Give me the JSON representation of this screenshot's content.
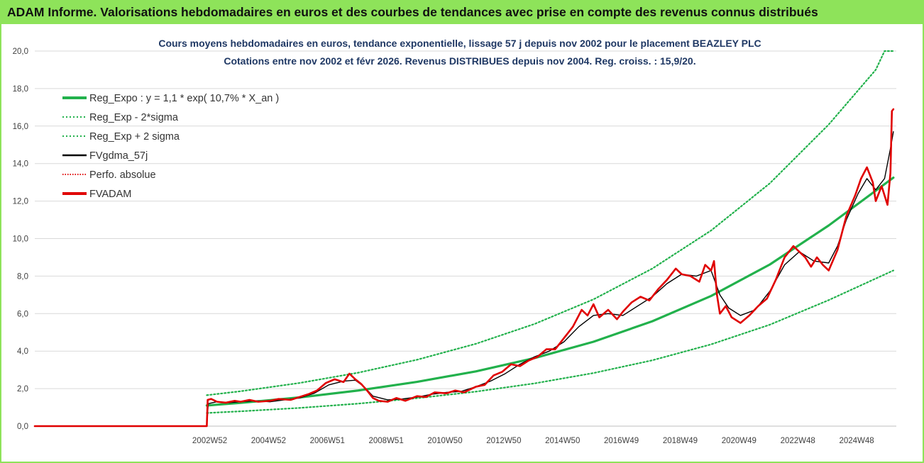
{
  "header": {
    "title": "ADAM Informe. Valorisations hebdomadaires en euros et des courbes de tendances avec prise en compte des revenus connus distribués"
  },
  "colors": {
    "header_bg": "#8ee35a",
    "reg_expo": "#22b14c",
    "sigma": "#22b14c",
    "fvgdma": "#000000",
    "perfo": "#e00000",
    "fvadam": "#e00000",
    "title_text": "#1f3864"
  },
  "chart_data": {
    "type": "line",
    "title_lines": [
      "Cours moyens hebdomadaires en euros, tendance exponentielle, lissage 57 j depuis nov 2002 pour le placement BEAZLEY PLC",
      "Cotations entre nov 2002 et févr 2026. Revenus DISTRIBUES depuis nov 2004. Reg. croiss. : 15,9/20."
    ],
    "ylim": [
      0,
      20
    ],
    "yticks": [
      "0,0",
      "2,0",
      "4,0",
      "6,0",
      "8,0",
      "10,0",
      "12,0",
      "14,0",
      "16,0",
      "18,0",
      "20,0"
    ],
    "xlim": [
      1997.0,
      2026.3
    ],
    "xticks": [
      {
        "label": "2002W52",
        "x": 2002.95
      },
      {
        "label": "2004W52",
        "x": 2004.95
      },
      {
        "label": "2006W51",
        "x": 2006.95
      },
      {
        "label": "2008W51",
        "x": 2008.95
      },
      {
        "label": "2010W50",
        "x": 2010.95
      },
      {
        "label": "2012W50",
        "x": 2012.95
      },
      {
        "label": "2014W50",
        "x": 2014.95
      },
      {
        "label": "2016W49",
        "x": 2016.95
      },
      {
        "label": "2018W49",
        "x": 2018.95
      },
      {
        "label": "2020W49",
        "x": 2020.95
      },
      {
        "label": "2022W48",
        "x": 2022.95
      },
      {
        "label": "2024W48",
        "x": 2024.95
      }
    ],
    "legend_position": "top-left",
    "series": [
      {
        "name": "Reg_Expo : y = 1,1 * exp( 10,7% *  X_an )",
        "style": "solid-thick",
        "color": "#22b14c",
        "points": [
          [
            2002.85,
            1.1
          ],
          [
            2004,
            1.24
          ],
          [
            2006,
            1.53
          ],
          [
            2008,
            1.9
          ],
          [
            2010,
            2.36
          ],
          [
            2012,
            2.92
          ],
          [
            2014,
            3.63
          ],
          [
            2016,
            4.5
          ],
          [
            2018,
            5.59
          ],
          [
            2020,
            6.94
          ],
          [
            2022,
            8.62
          ],
          [
            2024,
            10.7
          ],
          [
            2026.2,
            13.25
          ]
        ]
      },
      {
        "name": "Reg_Exp - 2*sigma",
        "style": "dotted",
        "color": "#22b14c",
        "points": [
          [
            2002.85,
            0.7
          ],
          [
            2004,
            0.79
          ],
          [
            2006,
            0.97
          ],
          [
            2008,
            1.2
          ],
          [
            2010,
            1.49
          ],
          [
            2012,
            1.84
          ],
          [
            2014,
            2.28
          ],
          [
            2016,
            2.83
          ],
          [
            2018,
            3.51
          ],
          [
            2020,
            4.36
          ],
          [
            2022,
            5.41
          ],
          [
            2024,
            6.72
          ],
          [
            2026.2,
            8.3
          ]
        ]
      },
      {
        "name": "Reg_Exp + 2 sigma",
        "style": "dotted",
        "color": "#22b14c",
        "points": [
          [
            2002.85,
            1.65
          ],
          [
            2004,
            1.86
          ],
          [
            2006,
            2.3
          ],
          [
            2008,
            2.85
          ],
          [
            2010,
            3.54
          ],
          [
            2012,
            4.39
          ],
          [
            2014,
            5.45
          ],
          [
            2016,
            6.76
          ],
          [
            2018,
            8.4
          ],
          [
            2020,
            10.43
          ],
          [
            2022,
            12.95
          ],
          [
            2024,
            16.08
          ],
          [
            2025.6,
            19.0
          ],
          [
            2025.9,
            20.0
          ],
          [
            2026.2,
            20.0
          ]
        ]
      },
      {
        "name": "FVgdma_57j",
        "style": "solid",
        "color": "#000000",
        "points": [
          [
            1997.0,
            0.0
          ],
          [
            2002.85,
            0.0
          ],
          [
            2002.9,
            1.2
          ],
          [
            2003.2,
            1.3
          ],
          [
            2003.6,
            1.25
          ],
          [
            2004.0,
            1.3
          ],
          [
            2004.5,
            1.35
          ],
          [
            2005.0,
            1.3
          ],
          [
            2005.5,
            1.4
          ],
          [
            2006.0,
            1.5
          ],
          [
            2006.5,
            1.75
          ],
          [
            2007.0,
            2.2
          ],
          [
            2007.5,
            2.4
          ],
          [
            2007.9,
            2.45
          ],
          [
            2008.2,
            2.1
          ],
          [
            2008.5,
            1.6
          ],
          [
            2009.0,
            1.4
          ],
          [
            2009.5,
            1.45
          ],
          [
            2010.0,
            1.55
          ],
          [
            2010.5,
            1.7
          ],
          [
            2011.0,
            1.8
          ],
          [
            2011.5,
            1.85
          ],
          [
            2012.0,
            2.1
          ],
          [
            2012.5,
            2.4
          ],
          [
            2013.0,
            2.8
          ],
          [
            2013.5,
            3.3
          ],
          [
            2014.0,
            3.7
          ],
          [
            2014.5,
            4.0
          ],
          [
            2015.0,
            4.5
          ],
          [
            2015.5,
            5.3
          ],
          [
            2016.0,
            5.9
          ],
          [
            2016.5,
            6.0
          ],
          [
            2017.0,
            5.9
          ],
          [
            2017.5,
            6.4
          ],
          [
            2018.0,
            6.9
          ],
          [
            2018.5,
            7.6
          ],
          [
            2019.0,
            8.1
          ],
          [
            2019.5,
            8.0
          ],
          [
            2020.0,
            8.3
          ],
          [
            2020.3,
            7.0
          ],
          [
            2020.6,
            6.3
          ],
          [
            2021.0,
            5.9
          ],
          [
            2021.5,
            6.2
          ],
          [
            2022.0,
            7.2
          ],
          [
            2022.5,
            8.6
          ],
          [
            2023.0,
            9.3
          ],
          [
            2023.5,
            8.8
          ],
          [
            2024.0,
            8.7
          ],
          [
            2024.3,
            9.6
          ],
          [
            2024.6,
            11.0
          ],
          [
            2025.0,
            12.4
          ],
          [
            2025.3,
            13.2
          ],
          [
            2025.6,
            12.6
          ],
          [
            2025.9,
            13.2
          ],
          [
            2026.1,
            14.8
          ],
          [
            2026.2,
            15.7
          ]
        ]
      },
      {
        "name": "Perfo. absolue",
        "style": "dotted",
        "color": "#e00000",
        "points": []
      },
      {
        "name": "FVADAM",
        "style": "solid-thick",
        "color": "#e00000",
        "points": [
          [
            1997.0,
            0.0
          ],
          [
            2002.85,
            0.0
          ],
          [
            2002.88,
            1.4
          ],
          [
            2003.0,
            1.45
          ],
          [
            2003.2,
            1.3
          ],
          [
            2003.5,
            1.25
          ],
          [
            2003.8,
            1.35
          ],
          [
            2004.0,
            1.3
          ],
          [
            2004.3,
            1.4
          ],
          [
            2004.6,
            1.3
          ],
          [
            2005.0,
            1.35
          ],
          [
            2005.3,
            1.45
          ],
          [
            2005.7,
            1.4
          ],
          [
            2006.0,
            1.55
          ],
          [
            2006.3,
            1.7
          ],
          [
            2006.6,
            1.9
          ],
          [
            2006.9,
            2.3
          ],
          [
            2007.2,
            2.5
          ],
          [
            2007.5,
            2.35
          ],
          [
            2007.7,
            2.8
          ],
          [
            2007.9,
            2.5
          ],
          [
            2008.1,
            2.25
          ],
          [
            2008.3,
            1.9
          ],
          [
            2008.5,
            1.5
          ],
          [
            2008.7,
            1.35
          ],
          [
            2009.0,
            1.3
          ],
          [
            2009.3,
            1.5
          ],
          [
            2009.6,
            1.35
          ],
          [
            2010.0,
            1.6
          ],
          [
            2010.3,
            1.55
          ],
          [
            2010.6,
            1.8
          ],
          [
            2011.0,
            1.75
          ],
          [
            2011.3,
            1.9
          ],
          [
            2011.6,
            1.8
          ],
          [
            2012.0,
            2.1
          ],
          [
            2012.3,
            2.2
          ],
          [
            2012.6,
            2.7
          ],
          [
            2012.9,
            2.9
          ],
          [
            2013.2,
            3.3
          ],
          [
            2013.5,
            3.2
          ],
          [
            2013.8,
            3.5
          ],
          [
            2014.1,
            3.7
          ],
          [
            2014.4,
            4.1
          ],
          [
            2014.7,
            4.1
          ],
          [
            2015.0,
            4.7
          ],
          [
            2015.3,
            5.3
          ],
          [
            2015.6,
            6.2
          ],
          [
            2015.8,
            5.9
          ],
          [
            2016.0,
            6.5
          ],
          [
            2016.2,
            5.8
          ],
          [
            2016.5,
            6.2
          ],
          [
            2016.8,
            5.7
          ],
          [
            2017.0,
            6.1
          ],
          [
            2017.3,
            6.6
          ],
          [
            2017.6,
            6.9
          ],
          [
            2017.9,
            6.7
          ],
          [
            2018.2,
            7.3
          ],
          [
            2018.5,
            7.8
          ],
          [
            2018.8,
            8.4
          ],
          [
            2019.0,
            8.1
          ],
          [
            2019.3,
            8.0
          ],
          [
            2019.6,
            7.7
          ],
          [
            2019.8,
            8.6
          ],
          [
            2020.0,
            8.3
          ],
          [
            2020.1,
            8.8
          ],
          [
            2020.2,
            7.0
          ],
          [
            2020.3,
            6.0
          ],
          [
            2020.5,
            6.4
          ],
          [
            2020.7,
            5.8
          ],
          [
            2021.0,
            5.5
          ],
          [
            2021.3,
            5.9
          ],
          [
            2021.6,
            6.4
          ],
          [
            2021.9,
            6.8
          ],
          [
            2022.2,
            7.8
          ],
          [
            2022.5,
            9.0
          ],
          [
            2022.8,
            9.6
          ],
          [
            2023.0,
            9.3
          ],
          [
            2023.2,
            9.0
          ],
          [
            2023.4,
            8.5
          ],
          [
            2023.6,
            9.0
          ],
          [
            2023.8,
            8.6
          ],
          [
            2024.0,
            8.3
          ],
          [
            2024.3,
            9.4
          ],
          [
            2024.6,
            11.2
          ],
          [
            2024.9,
            12.3
          ],
          [
            2025.1,
            13.2
          ],
          [
            2025.3,
            13.8
          ],
          [
            2025.5,
            13.0
          ],
          [
            2025.6,
            12.0
          ],
          [
            2025.8,
            12.8
          ],
          [
            2026.0,
            11.8
          ],
          [
            2026.1,
            13.5
          ],
          [
            2026.15,
            16.8
          ],
          [
            2026.2,
            16.9
          ]
        ]
      }
    ]
  }
}
